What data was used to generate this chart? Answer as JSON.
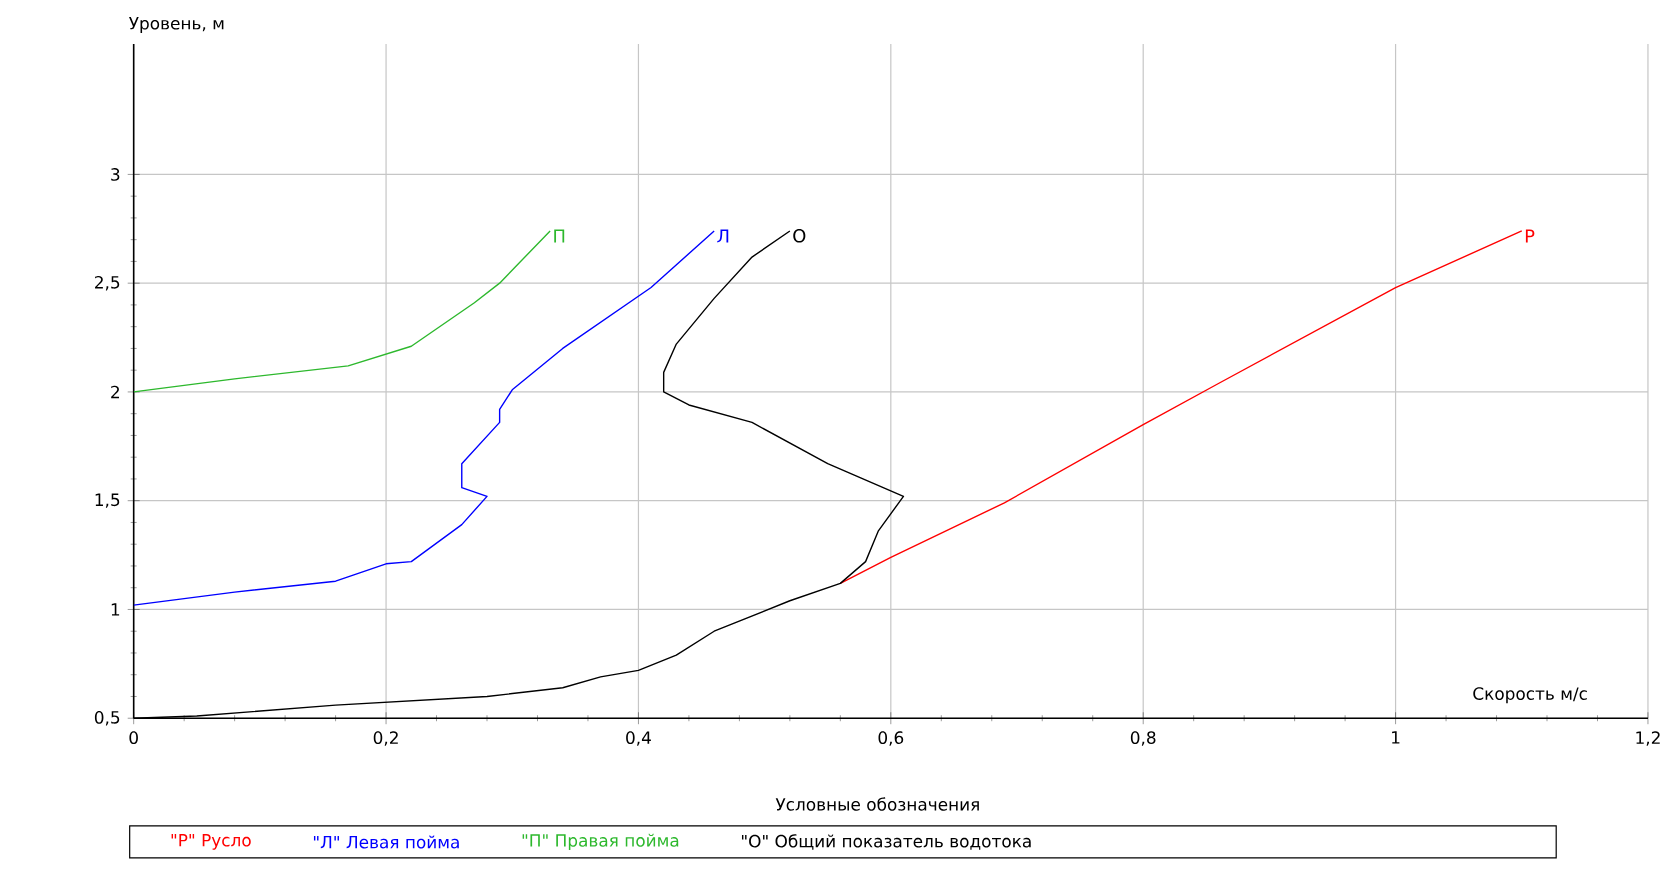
{
  "chart_data": {
    "type": "line",
    "xlabel": "Скорость м/с",
    "ylabel": "Уровень, м",
    "legend_title": "Условные обозначения",
    "xlim": [
      0,
      1.2
    ],
    "ylim": [
      0.5,
      3.6
    ],
    "xticks": [
      0,
      {
        "value": 0.2,
        "label": "0,2"
      },
      {
        "value": 0.4,
        "label": "0,4"
      },
      {
        "value": 0.6,
        "label": "0,6"
      },
      {
        "value": 0.8,
        "label": "0,8"
      },
      1,
      {
        "value": 1.2,
        "label": "1,2"
      }
    ],
    "yticks": [
      {
        "value": 0.5,
        "label": "0,5"
      },
      1,
      {
        "value": 1.5,
        "label": "1,5"
      },
      2,
      {
        "value": 2.5,
        "label": "2,5"
      },
      3
    ],
    "grid": true,
    "legend": "bottom",
    "marker": "none",
    "line_style": "solid",
    "series": [
      {
        "name": "\"Р\" Русло",
        "color": "#ff0000",
        "x": [
          0.56,
          0.6,
          0.69,
          0.8,
          0.86,
          1.0,
          1.1
        ],
        "values": [
          1.12,
          1.24,
          1.49,
          1.85,
          2.04,
          2.48,
          2.74
        ]
      },
      {
        "name": "\"Л\" Левая пойма",
        "color": "#0000ff",
        "x": [
          0,
          0.08,
          0.16,
          0.2,
          0.22,
          0.26,
          0.28,
          0.26,
          0.26,
          0.29,
          0.29,
          0.3,
          0.34,
          0.41,
          0.46
        ],
        "values": [
          1.02,
          1.08,
          1.13,
          1.21,
          1.22,
          1.39,
          1.52,
          1.56,
          1.67,
          1.86,
          1.92,
          2.01,
          2.2,
          2.48,
          2.74
        ]
      },
      {
        "name": "\"П\" Правая пойма",
        "color": "#2db82d",
        "x": [
          0,
          0.08,
          0.17,
          0.22,
          0.27,
          0.29,
          0.33
        ],
        "values": [
          2.0,
          2.06,
          2.12,
          2.21,
          2.41,
          2.5,
          2.74
        ]
      },
      {
        "name": "\"О\" Общий показатель водотока",
        "color": "#000000",
        "x": [
          0,
          0.05,
          0.16,
          0.28,
          0.34,
          0.37,
          0.4,
          0.43,
          0.46,
          0.52,
          0.56,
          0.58,
          0.59,
          0.61,
          0.55,
          0.49,
          0.44,
          0.42,
          0.42,
          0.43,
          0.46,
          0.49,
          0.52
        ],
        "values": [
          0.5,
          0.51,
          0.56,
          0.6,
          0.64,
          0.69,
          0.72,
          0.79,
          0.9,
          1.04,
          1.12,
          1.22,
          1.36,
          1.52,
          1.67,
          1.86,
          1.94,
          2.0,
          2.09,
          2.22,
          2.43,
          2.62,
          2.74
        ]
      }
    ],
    "annotations": [
      {
        "text": "Р",
        "x": 1.1,
        "y": 2.74
      },
      {
        "text": "Л",
        "x": 0.46,
        "y": 2.74
      },
      {
        "text": "П",
        "x": 0.33,
        "y": 2.74
      },
      {
        "text": "О",
        "x": 0.52,
        "y": 2.74
      }
    ]
  }
}
